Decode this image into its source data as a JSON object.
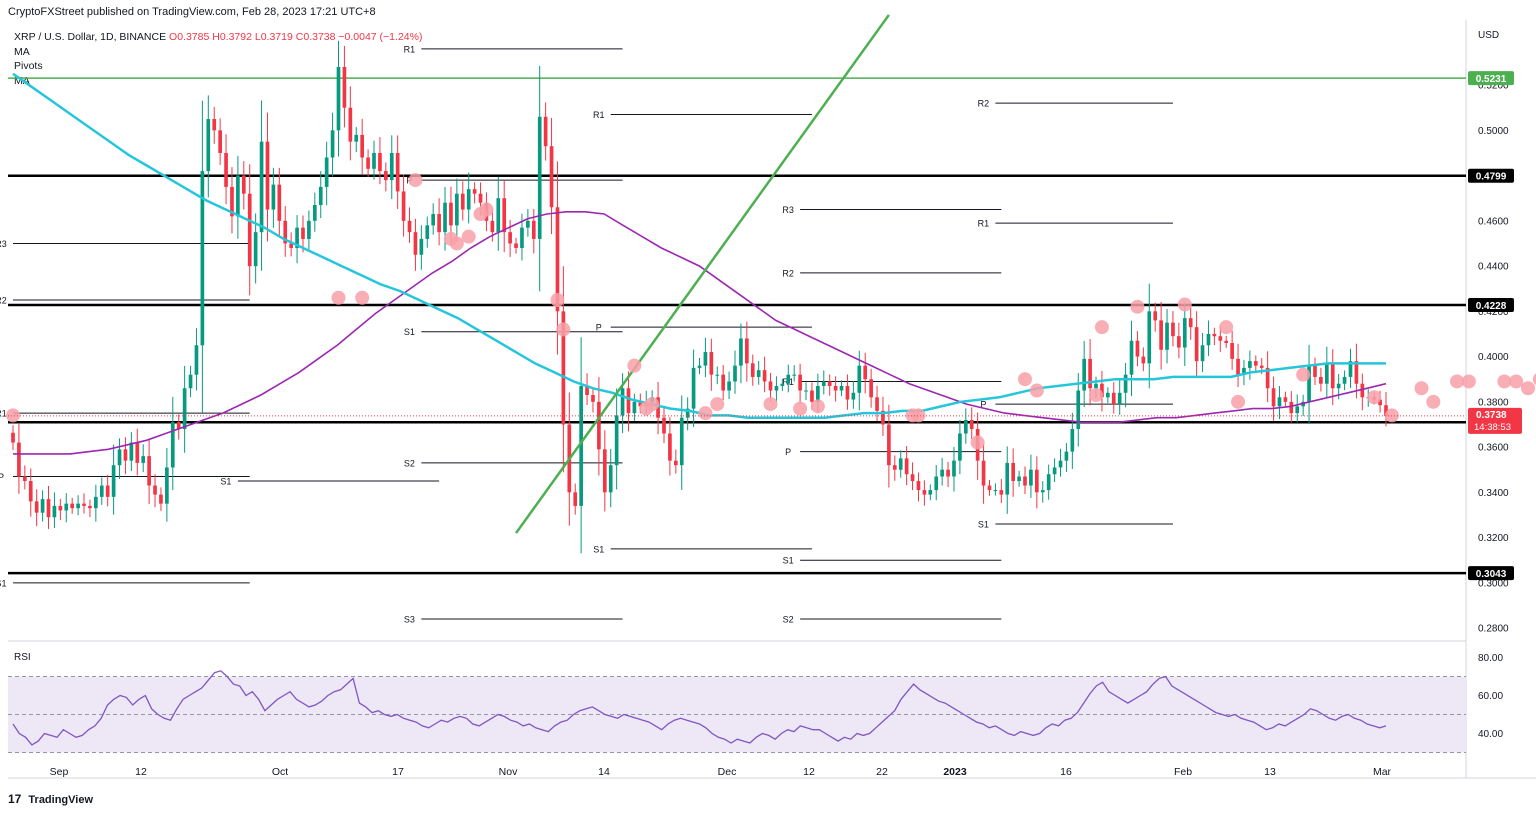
{
  "header": {
    "publisher_line": "CryptoFXStreet published on TradingView.com, Feb 28, 2023 17:21 UTC+8"
  },
  "legend": {
    "symbol": "XRP / U.S. Dollar, 1D, BINANCE",
    "open": "O0.3785",
    "high": "H0.3792",
    "low": "L0.3719",
    "close": "C0.3738",
    "change": "−0.0047 (−1.24%)",
    "indicators": [
      "MA",
      "Pivots",
      "MA"
    ]
  },
  "footer": {
    "brand": "TradingView",
    "logo_glyph": "17"
  },
  "colors": {
    "up": "#089981",
    "down": "#f23645",
    "ma_fast": "#26c6da",
    "ma_slow": "#9c27b0",
    "trendline": "#4caf50",
    "circle": "#f8a0a8",
    "rsi": "#7e57c2",
    "rsi_band": "#ede7f6"
  },
  "chart_data": {
    "type": "candlestick",
    "price_axis": {
      "unit_label": "USD",
      "ticks": [
        "0.5200",
        "0.5000",
        "0.4800",
        "0.4600",
        "0.4400",
        "0.4200",
        "0.4000",
        "0.3800",
        "0.3600",
        "0.3400",
        "0.3200",
        "0.3000",
        "0.2800"
      ],
      "ylim": [
        0.2765,
        0.547
      ]
    },
    "x_axis": {
      "ticks": [
        "Sep",
        "12",
        "Oct",
        "17",
        "Nov",
        "14",
        "Dec",
        "12",
        "22",
        "2023",
        "16",
        "Feb",
        "13",
        "Mar"
      ]
    },
    "horizontal_levels": [
      {
        "label": "0.5231",
        "value": 0.5231,
        "color": "#4caf50"
      },
      {
        "label": "0.4799",
        "value": 0.4799,
        "color": "#000000"
      },
      {
        "label": "0.4228",
        "value": 0.4228,
        "color": "#000000"
      },
      {
        "label": "0.3710",
        "value": 0.371,
        "color": "#000000"
      },
      {
        "label": "0.3043",
        "value": 0.3043,
        "color": "#000000"
      }
    ],
    "current_price": {
      "label": "0.3738",
      "value": 0.3738,
      "countdown": "14:38:53"
    },
    "pivots": [
      {
        "label": "R1",
        "value": 0.375,
        "start": 0,
        "end": 40
      },
      {
        "label": "P",
        "value": 0.347,
        "start": 0,
        "end": 40
      },
      {
        "label": "S1",
        "value": 0.3,
        "start": 0,
        "end": 40
      },
      {
        "label": "R3",
        "value": 0.45,
        "start": 0,
        "end": 40
      },
      {
        "label": "R2",
        "value": 0.425,
        "start": 0,
        "end": 40
      },
      {
        "label": "R1",
        "value": 0.536,
        "start": 69,
        "end": 103
      },
      {
        "label": "P",
        "value": 0.478,
        "start": 69,
        "end": 103
      },
      {
        "label": "S1",
        "value": 0.345,
        "start": 38,
        "end": 72
      },
      {
        "label": "S1",
        "value": 0.411,
        "start": 69,
        "end": 103
      },
      {
        "label": "S2",
        "value": 0.353,
        "start": 69,
        "end": 103
      },
      {
        "label": "S3",
        "value": 0.284,
        "start": 69,
        "end": 103
      },
      {
        "label": "R1",
        "value": 0.507,
        "start": 101,
        "end": 135
      },
      {
        "label": "P",
        "value": 0.413,
        "start": 101,
        "end": 135
      },
      {
        "label": "S1",
        "value": 0.315,
        "start": 101,
        "end": 135
      },
      {
        "label": "R3",
        "value": 0.465,
        "start": 133,
        "end": 167
      },
      {
        "label": "R2",
        "value": 0.437,
        "start": 133,
        "end": 167
      },
      {
        "label": "R1",
        "value": 0.389,
        "start": 133,
        "end": 167
      },
      {
        "label": "P",
        "value": 0.358,
        "start": 133,
        "end": 167
      },
      {
        "label": "S1",
        "value": 0.31,
        "start": 133,
        "end": 167
      },
      {
        "label": "S2",
        "value": 0.284,
        "start": 133,
        "end": 167
      },
      {
        "label": "R2",
        "value": 0.512,
        "start": 166,
        "end": 196
      },
      {
        "label": "R1",
        "value": 0.459,
        "start": 166,
        "end": 196
      },
      {
        "label": "P",
        "value": 0.379,
        "start": 166,
        "end": 196
      },
      {
        "label": "S1",
        "value": 0.326,
        "start": 166,
        "end": 196
      }
    ],
    "closes": [
      0.362,
      0.347,
      0.345,
      0.336,
      0.331,
      0.337,
      0.329,
      0.334,
      0.332,
      0.335,
      0.333,
      0.335,
      0.334,
      0.333,
      0.338,
      0.343,
      0.338,
      0.352,
      0.359,
      0.354,
      0.362,
      0.353,
      0.356,
      0.343,
      0.339,
      0.335,
      0.351,
      0.371,
      0.368,
      0.386,
      0.392,
      0.405,
      0.482,
      0.505,
      0.5,
      0.49,
      0.475,
      0.462,
      0.48,
      0.472,
      0.44,
      0.455,
      0.495,
      0.465,
      0.476,
      0.46,
      0.45,
      0.448,
      0.457,
      0.452,
      0.46,
      0.467,
      0.475,
      0.488,
      0.5,
      0.528,
      0.51,
      0.495,
      0.498,
      0.488,
      0.483,
      0.49,
      0.482,
      0.478,
      0.49,
      0.473,
      0.46,
      0.455,
      0.445,
      0.452,
      0.458,
      0.463,
      0.455,
      0.468,
      0.458,
      0.472,
      0.465,
      0.474,
      0.472,
      0.468,
      0.46,
      0.455,
      0.47,
      0.455,
      0.45,
      0.448,
      0.457,
      0.46,
      0.452,
      0.506,
      0.493,
      0.466,
      0.42,
      0.37,
      0.34,
      0.334,
      0.387,
      0.383,
      0.38,
      0.359,
      0.34,
      0.352,
      0.374,
      0.386,
      0.375,
      0.38,
      0.378,
      0.38,
      0.382,
      0.373,
      0.366,
      0.354,
      0.352,
      0.373,
      0.377,
      0.395,
      0.396,
      0.402,
      0.392,
      0.392,
      0.385,
      0.389,
      0.396,
      0.408,
      0.397,
      0.391,
      0.394,
      0.389,
      0.385,
      0.387,
      0.388,
      0.392,
      0.392,
      0.385,
      0.385,
      0.38,
      0.387,
      0.389,
      0.387,
      0.385,
      0.387,
      0.381,
      0.384,
      0.396,
      0.39,
      0.382,
      0.376,
      0.37,
      0.352,
      0.35,
      0.355,
      0.348,
      0.345,
      0.341,
      0.339,
      0.341,
      0.347,
      0.35,
      0.347,
      0.354,
      0.366,
      0.372,
      0.368,
      0.354,
      0.343,
      0.341,
      0.341,
      0.339,
      0.353,
      0.345,
      0.347,
      0.343,
      0.35,
      0.34,
      0.341,
      0.348,
      0.351,
      0.354,
      0.358,
      0.368,
      0.385,
      0.399,
      0.386,
      0.388,
      0.382,
      0.384,
      0.379,
      0.384,
      0.392,
      0.407,
      0.4,
      0.397,
      0.42,
      0.416,
      0.403,
      0.415,
      0.409,
      0.404,
      0.417,
      0.413,
      0.398,
      0.405,
      0.41,
      0.409,
      0.407,
      0.406,
      0.399,
      0.392,
      0.395,
      0.398,
      0.396,
      0.395,
      0.386,
      0.378,
      0.382,
      0.38,
      0.375,
      0.378,
      0.38,
      0.396,
      0.391,
      0.388,
      0.397,
      0.386,
      0.388,
      0.391,
      0.398,
      0.388,
      0.382,
      0.382,
      0.381,
      0.3785,
      0.3738
    ],
    "ma_fast": {
      "start": 0,
      "values": [
        0.525,
        0.519,
        0.513,
        0.507,
        0.501,
        0.495,
        0.489,
        0.484,
        0.479,
        0.474,
        0.469,
        0.465,
        0.461,
        0.457,
        0.452,
        0.448,
        0.444,
        0.44,
        0.436,
        0.432,
        0.429,
        0.425,
        0.421,
        0.417,
        0.412,
        0.407,
        0.402,
        0.397,
        0.393,
        0.389,
        0.386,
        0.384,
        0.381,
        0.379,
        0.377,
        0.376,
        0.374,
        0.374,
        0.373,
        0.373,
        0.373,
        0.373,
        0.373,
        0.374,
        0.375,
        0.375,
        0.376,
        0.376,
        0.378,
        0.38,
        0.381,
        0.382,
        0.384,
        0.386,
        0.387,
        0.388,
        0.389,
        0.39,
        0.39,
        0.39,
        0.391,
        0.391,
        0.391,
        0.391,
        0.393,
        0.394,
        0.395,
        0.396,
        0.397,
        0.397,
        0.397,
        0.397
      ]
    },
    "ma_slow": {
      "start": 0,
      "values": [
        0.357,
        0.357,
        0.357,
        0.357,
        0.358,
        0.359,
        0.361,
        0.363,
        0.366,
        0.369,
        0.372,
        0.375,
        0.379,
        0.383,
        0.388,
        0.393,
        0.399,
        0.405,
        0.412,
        0.419,
        0.425,
        0.431,
        0.437,
        0.442,
        0.448,
        0.453,
        0.457,
        0.461,
        0.463,
        0.464,
        0.464,
        0.463,
        0.458,
        0.453,
        0.448,
        0.444,
        0.44,
        0.434,
        0.428,
        0.422,
        0.416,
        0.412,
        0.408,
        0.404,
        0.4,
        0.396,
        0.392,
        0.388,
        0.385,
        0.382,
        0.379,
        0.377,
        0.375,
        0.374,
        0.373,
        0.372,
        0.371,
        0.371,
        0.371,
        0.372,
        0.373,
        0.373,
        0.374,
        0.375,
        0.376,
        0.377,
        0.377,
        0.378,
        0.38,
        0.382,
        0.384,
        0.386,
        0.388
      ]
    },
    "trendline": {
      "from": [
        85,
        0.322
      ],
      "to": [
        148,
        0.551
      ]
    },
    "touch_points": [
      [
        0,
        0.374
      ],
      [
        55,
        0.426
      ],
      [
        59,
        0.426
      ],
      [
        68,
        0.478
      ],
      [
        74,
        0.452
      ],
      [
        75,
        0.45
      ],
      [
        77,
        0.453
      ],
      [
        79,
        0.463
      ],
      [
        80,
        0.465
      ],
      [
        92,
        0.425
      ],
      [
        93,
        0.412
      ],
      [
        105,
        0.396
      ],
      [
        107,
        0.377
      ],
      [
        108,
        0.379
      ],
      [
        117,
        0.375
      ],
      [
        119,
        0.379
      ],
      [
        128,
        0.379
      ],
      [
        133,
        0.377
      ],
      [
        136,
        0.378
      ],
      [
        152,
        0.374
      ],
      [
        153,
        0.374
      ],
      [
        163,
        0.362
      ],
      [
        171,
        0.39
      ],
      [
        173,
        0.385
      ],
      [
        183,
        0.383
      ],
      [
        184,
        0.413
      ],
      [
        190,
        0.422
      ],
      [
        198,
        0.423
      ],
      [
        205,
        0.413
      ],
      [
        207,
        0.38
      ],
      [
        218,
        0.392
      ],
      [
        230,
        0.382
      ],
      [
        233,
        0.374
      ],
      [
        238,
        0.386
      ],
      [
        240,
        0.38
      ],
      [
        244,
        0.389
      ],
      [
        246,
        0.389
      ],
      [
        252,
        0.389
      ],
      [
        254,
        0.389
      ],
      [
        256,
        0.386
      ],
      [
        258,
        0.39
      ]
    ],
    "rsi": {
      "label": "RSI",
      "ticks": [
        "80.00",
        "60.00",
        "40.00"
      ],
      "band": [
        30,
        70
      ],
      "values": [
        45,
        40,
        38,
        34,
        36,
        40,
        39,
        38,
        42,
        40,
        38,
        39,
        42,
        44,
        48,
        55,
        58,
        60,
        59,
        55,
        58,
        60,
        53,
        50,
        48,
        47,
        53,
        58,
        60,
        62,
        64,
        68,
        72,
        73,
        70,
        66,
        65,
        60,
        62,
        58,
        52,
        55,
        58,
        60,
        62,
        58,
        56,
        54,
        55,
        57,
        60,
        62,
        63,
        66,
        69,
        56,
        54,
        51,
        52,
        50,
        49,
        50,
        48,
        47,
        46,
        44,
        43,
        45,
        47,
        46,
        48,
        49,
        48,
        45,
        44,
        46,
        48,
        50,
        49,
        47,
        46,
        44,
        45,
        43,
        42,
        41,
        44,
        46,
        47,
        50,
        52,
        53,
        54,
        52,
        50,
        49,
        48,
        50,
        49,
        48,
        47,
        46,
        44,
        42,
        45,
        47,
        48,
        47,
        46,
        45,
        43,
        40,
        38,
        37,
        35,
        37,
        36,
        35,
        38,
        40,
        39,
        37,
        40,
        42,
        41,
        44,
        43,
        42,
        42,
        40,
        38,
        36,
        38,
        37,
        40,
        39,
        40,
        43,
        46,
        49,
        52,
        58,
        62,
        66,
        63,
        61,
        59,
        57,
        56,
        54,
        52,
        50,
        48,
        46,
        45,
        43,
        44,
        42,
        40,
        39,
        41,
        40,
        39,
        40,
        43,
        45,
        44,
        47,
        48,
        51,
        56,
        61,
        65,
        67,
        62,
        60,
        58,
        56,
        58,
        60,
        62,
        66,
        69,
        70,
        65,
        63,
        61,
        59,
        57,
        55,
        53,
        51,
        50,
        49,
        50,
        48,
        47,
        46,
        44,
        42,
        43,
        45,
        44,
        46,
        48,
        50,
        53,
        52,
        50,
        48,
        47,
        49,
        50,
        48,
        47,
        45,
        44,
        43,
        44
      ]
    }
  }
}
